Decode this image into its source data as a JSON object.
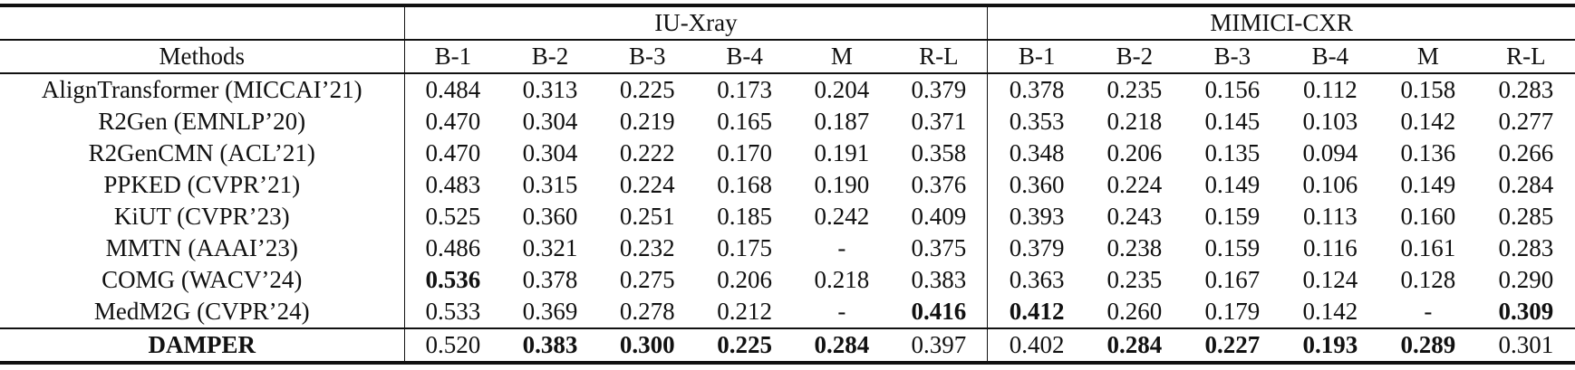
{
  "table": {
    "groups": [
      "IU-Xray",
      "MIMICI-CXR"
    ],
    "columns": [
      "Methods",
      "B-1",
      "B-2",
      "B-3",
      "B-4",
      "M",
      "R-L",
      "B-1",
      "B-2",
      "B-3",
      "B-4",
      "M",
      "R-L"
    ],
    "rows": [
      {
        "method": "AlignTransformer (MICCAI’21)",
        "values": [
          "0.484",
          "0.313",
          "0.225",
          "0.173",
          "0.204",
          "0.379",
          "0.378",
          "0.235",
          "0.156",
          "0.112",
          "0.158",
          "0.283"
        ],
        "bold": []
      },
      {
        "method": "R2Gen (EMNLP’20)",
        "values": [
          "0.470",
          "0.304",
          "0.219",
          "0.165",
          "0.187",
          "0.371",
          "0.353",
          "0.218",
          "0.145",
          "0.103",
          "0.142",
          "0.277"
        ],
        "bold": []
      },
      {
        "method": "R2GenCMN (ACL’21)",
        "values": [
          "0.470",
          "0.304",
          "0.222",
          "0.170",
          "0.191",
          "0.358",
          "0.348",
          "0.206",
          "0.135",
          "0.094",
          "0.136",
          "0.266"
        ],
        "bold": []
      },
      {
        "method": "PPKED (CVPR’21)",
        "values": [
          "0.483",
          "0.315",
          "0.224",
          "0.168",
          "0.190",
          "0.376",
          "0.360",
          "0.224",
          "0.149",
          "0.106",
          "0.149",
          "0.284"
        ],
        "bold": []
      },
      {
        "method": "KiUT (CVPR’23)",
        "values": [
          "0.525",
          "0.360",
          "0.251",
          "0.185",
          "0.242",
          "0.409",
          "0.393",
          "0.243",
          "0.159",
          "0.113",
          "0.160",
          "0.285"
        ],
        "bold": []
      },
      {
        "method": "MMTN (AAAI’23)",
        "values": [
          "0.486",
          "0.321",
          "0.232",
          "0.175",
          "-",
          "0.375",
          "0.379",
          "0.238",
          "0.159",
          "0.116",
          "0.161",
          "0.283"
        ],
        "bold": []
      },
      {
        "method": "COMG (WACV’24)",
        "values": [
          "0.536",
          "0.378",
          "0.275",
          "0.206",
          "0.218",
          "0.383",
          "0.363",
          "0.235",
          "0.167",
          "0.124",
          "0.128",
          "0.290"
        ],
        "bold": [
          0
        ]
      },
      {
        "method": "MedM2G (CVPR’24)",
        "values": [
          "0.533",
          "0.369",
          "0.278",
          "0.212",
          "-",
          "0.416",
          "0.412",
          "0.260",
          "0.179",
          "0.142",
          "-",
          "0.309"
        ],
        "bold": [
          5,
          6,
          11
        ]
      },
      {
        "method": "DAMPER",
        "method_bold": true,
        "separated": true,
        "values": [
          "0.520",
          "0.383",
          "0.300",
          "0.225",
          "0.284",
          "0.397",
          "0.402",
          "0.284",
          "0.227",
          "0.193",
          "0.289",
          "0.301"
        ],
        "bold": [
          1,
          2,
          3,
          4,
          7,
          8,
          9,
          10
        ]
      }
    ]
  }
}
